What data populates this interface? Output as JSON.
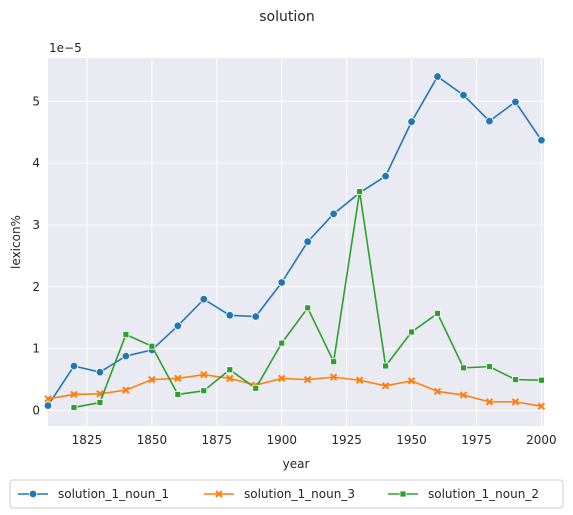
{
  "chart_data": {
    "type": "line",
    "title": "solution",
    "xlabel": "year",
    "ylabel": "lexicon%",
    "y_offset_label": "1e−5",
    "xlim": [
      1810,
      2001
    ],
    "ylim": [
      -0.25,
      5.7
    ],
    "xticks": [
      1825,
      1850,
      1875,
      1900,
      1925,
      1950,
      1975,
      2000
    ],
    "yticks": [
      0,
      1,
      2,
      3,
      4,
      5
    ],
    "grid": true,
    "legend_position": "bottom",
    "series": [
      {
        "name": "solution_1_noun_1",
        "color": "#1f77b4",
        "marker": "circle",
        "x": [
          1810,
          1820,
          1830,
          1840,
          1850,
          1860,
          1870,
          1880,
          1890,
          1900,
          1910,
          1920,
          1930,
          1940,
          1950,
          1960,
          1970,
          1980,
          1990,
          2000
        ],
        "values": [
          0.08,
          0.72,
          0.62,
          0.88,
          0.98,
          1.37,
          1.8,
          1.54,
          1.52,
          2.07,
          2.73,
          3.18,
          3.52,
          3.79,
          4.67,
          5.4,
          5.1,
          4.68,
          4.99,
          4.37
        ]
      },
      {
        "name": "solution_1_noun_3",
        "color": "#ff7f0e",
        "marker": "x",
        "x": [
          1810,
          1820,
          1830,
          1840,
          1850,
          1860,
          1870,
          1880,
          1890,
          1900,
          1910,
          1920,
          1930,
          1940,
          1950,
          1960,
          1970,
          1980,
          1990,
          2000
        ],
        "values": [
          0.19,
          0.26,
          0.27,
          0.33,
          0.5,
          0.52,
          0.58,
          0.52,
          0.41,
          0.52,
          0.5,
          0.54,
          0.49,
          0.4,
          0.48,
          0.31,
          0.25,
          0.14,
          0.14,
          0.07
        ]
      },
      {
        "name": "solution_1_noun_2",
        "color": "#2ca02c",
        "marker": "square",
        "x": [
          1820,
          1830,
          1840,
          1850,
          1860,
          1870,
          1880,
          1890,
          1900,
          1910,
          1920,
          1930,
          1940,
          1950,
          1960,
          1970,
          1980,
          1990,
          2000
        ],
        "values": [
          0.05,
          0.13,
          1.23,
          1.04,
          0.26,
          0.32,
          0.66,
          0.36,
          1.09,
          1.66,
          0.79,
          3.54,
          0.72,
          1.27,
          1.57,
          0.69,
          0.71,
          0.5,
          0.49
        ]
      }
    ]
  }
}
